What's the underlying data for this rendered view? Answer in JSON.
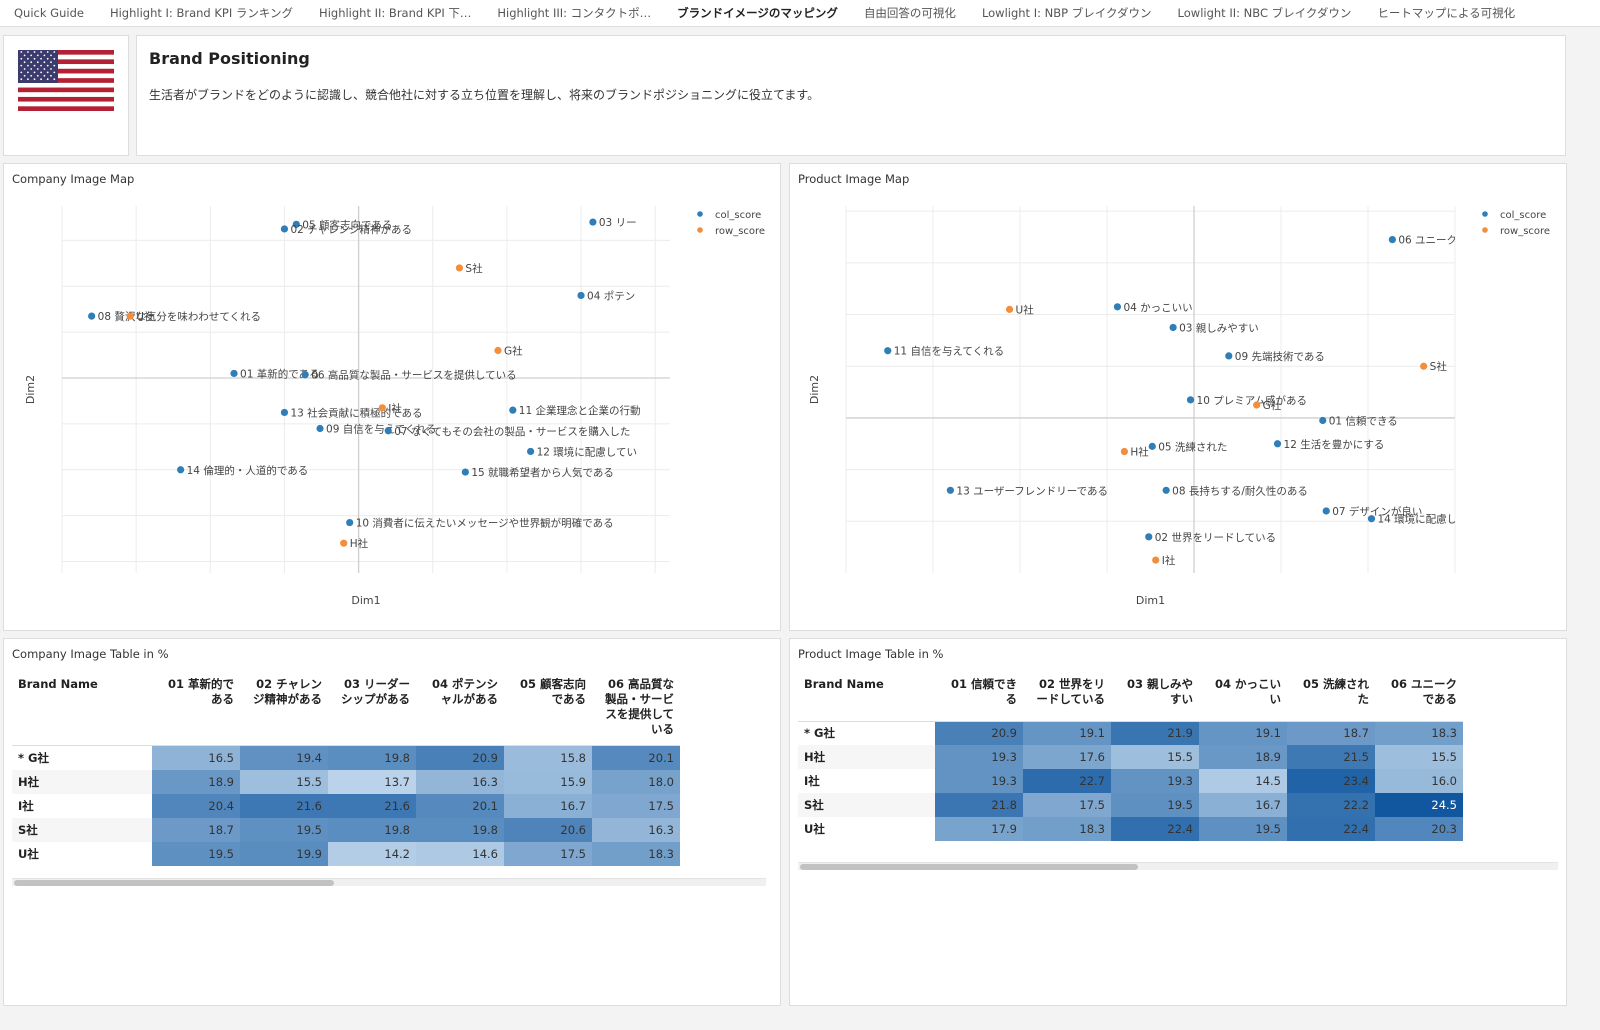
{
  "tabs": [
    {
      "label": "Quick Guide",
      "active": false
    },
    {
      "label": "Highlight I: Brand KPI ランキング",
      "active": false
    },
    {
      "label": "Highlight II: Brand KPI 下…",
      "active": false
    },
    {
      "label": "Highlight III: コンタクトポ…",
      "active": false
    },
    {
      "label": "ブランドイメージのマッピング",
      "active": true
    },
    {
      "label": "自由回答の可視化",
      "active": false
    },
    {
      "label": "Lowlight I: NBP ブレイクダウン",
      "active": false
    },
    {
      "label": "Lowlight II: NBC ブレイクダウン",
      "active": false
    },
    {
      "label": "ヒートマップによる可視化",
      "active": false
    }
  ],
  "header": {
    "flag_icon": "us-flag-icon",
    "title": "Brand Positioning",
    "description": "生活者がブランドをどのように認識し、競合他社に対する立ち位置を理解し、将来のブランドポジショニングに役立てます。"
  },
  "colors": {
    "col_score": "#2f7eb8",
    "row_score": "#f28e3c"
  },
  "company_map": {
    "title": "Company Image Map",
    "chart_data": {
      "type": "scatter",
      "xlabel": "Dim1",
      "ylabel": "Dim2",
      "xlim": [
        -1.0,
        1.05
      ],
      "ylim": [
        -0.85,
        0.75
      ],
      "grid": true,
      "legend": "top-right",
      "series": [
        {
          "name": "col_score",
          "points": [
            {
              "label": "05 顧客志向である",
              "x": -0.21,
              "y": 0.67
            },
            {
              "label": "02 チャレンジ精神がある",
              "x": -0.25,
              "y": 0.65
            },
            {
              "label": "03 リー",
              "x": 0.79,
              "y": 0.68
            },
            {
              "label": "04 ポテン",
              "x": 0.75,
              "y": 0.36
            },
            {
              "label": "08 贅沢な気分を味わわせてくれる",
              "x": -0.9,
              "y": 0.27
            },
            {
              "label": "01 革新的である",
              "x": -0.42,
              "y": 0.02
            },
            {
              "label": "06 高品質な製品・サービスを提供している",
              "x": -0.18,
              "y": 0.015
            },
            {
              "label": "13 社会貢献に積極的である",
              "x": -0.25,
              "y": -0.15
            },
            {
              "label": "11 企業理念と企業の行動",
              "x": 0.52,
              "y": -0.14
            },
            {
              "label": "09 自信を与えてくれる",
              "x": -0.13,
              "y": -0.22
            },
            {
              "label": "07 なくてもその会社の製品・サービスを購入した",
              "x": 0.1,
              "y": -0.23
            },
            {
              "label": "12 環境に配慮してい",
              "x": 0.58,
              "y": -0.32
            },
            {
              "label": "14 倫理的・人道的である",
              "x": -0.6,
              "y": -0.4
            },
            {
              "label": "15 就職希望者から人気である",
              "x": 0.36,
              "y": -0.41
            },
            {
              "label": "10 消費者に伝えたいメッセージや世界観が明確である",
              "x": -0.03,
              "y": -0.63
            }
          ]
        },
        {
          "name": "row_score",
          "points": [
            {
              "label": "S社",
              "x": 0.34,
              "y": 0.48
            },
            {
              "label": "U社",
              "x": -0.77,
              "y": 0.27
            },
            {
              "label": "G社",
              "x": 0.47,
              "y": 0.12
            },
            {
              "label": "I社",
              "x": 0.08,
              "y": -0.13
            },
            {
              "label": "H社",
              "x": -0.05,
              "y": -0.72
            }
          ]
        }
      ]
    }
  },
  "product_map": {
    "title": "Product Image Map",
    "chart_data": {
      "type": "scatter",
      "xlabel": "Dim1",
      "ylabel": "Dim2",
      "xlim": [
        -1.0,
        0.75
      ],
      "ylim": [
        -0.6,
        0.82
      ],
      "grid": true,
      "legend": "top-right",
      "series": [
        {
          "name": "col_score",
          "points": [
            {
              "label": "06 ユニークで",
              "x": 0.57,
              "y": 0.69
            },
            {
              "label": "04 かっこいい",
              "x": -0.22,
              "y": 0.43
            },
            {
              "label": "03 親しみやすい",
              "x": -0.06,
              "y": 0.35
            },
            {
              "label": "11 自信を与えてくれる",
              "x": -0.88,
              "y": 0.26
            },
            {
              "label": "09 先端技術である",
              "x": 0.1,
              "y": 0.24
            },
            {
              "label": "10 プレミアム感がある",
              "x": -0.01,
              "y": 0.07
            },
            {
              "label": "01 信頼できる",
              "x": 0.37,
              "y": -0.01
            },
            {
              "label": "05 洗練された",
              "x": -0.12,
              "y": -0.11
            },
            {
              "label": "12 生活を豊かにする",
              "x": 0.24,
              "y": -0.1
            },
            {
              "label": "13 ユーザーフレンドリーである",
              "x": -0.7,
              "y": -0.28
            },
            {
              "label": "08 長持ちする/耐久性のある",
              "x": -0.08,
              "y": -0.28
            },
            {
              "label": "07 デザインが良い",
              "x": 0.38,
              "y": -0.36
            },
            {
              "label": "14 環境に配慮して",
              "x": 0.51,
              "y": -0.39
            },
            {
              "label": "02 世界をリードしている",
              "x": -0.13,
              "y": -0.46
            }
          ]
        },
        {
          "name": "row_score",
          "points": [
            {
              "label": "U社",
              "x": -0.53,
              "y": 0.42
            },
            {
              "label": "S社",
              "x": 0.66,
              "y": 0.2
            },
            {
              "label": "G社",
              "x": 0.18,
              "y": 0.05
            },
            {
              "label": "H社",
              "x": -0.2,
              "y": -0.13
            },
            {
              "label": "I社",
              "x": -0.11,
              "y": -0.55
            }
          ]
        }
      ]
    }
  },
  "company_table": {
    "title": "Company Image Table in %",
    "brand_header": "Brand Name",
    "columns": [
      "01 革新的である",
      "02 チャレンジ精神がある",
      "03 リーダーシップがある",
      "04 ポテンシャルがある",
      "05 顧客志向である",
      "06 高品質な製品・サービスを提供している"
    ],
    "rows": [
      {
        "brand": "* G社",
        "values": [
          "16.5",
          "19.4",
          "19.8",
          "20.9",
          "15.8",
          "20.1"
        ]
      },
      {
        "brand": "H社",
        "values": [
          "18.9",
          "15.5",
          "13.7",
          "16.3",
          "15.9",
          "18.0"
        ]
      },
      {
        "brand": "I社",
        "values": [
          "20.4",
          "21.6",
          "21.6",
          "20.1",
          "16.7",
          "17.5"
        ]
      },
      {
        "brand": "S社",
        "values": [
          "18.7",
          "19.5",
          "19.8",
          "19.8",
          "20.6",
          "16.3"
        ]
      },
      {
        "brand": "U社",
        "values": [
          "19.5",
          "19.9",
          "14.2",
          "14.6",
          "17.5",
          "18.3"
        ]
      }
    ]
  },
  "product_table": {
    "title": "Product Image Table in %",
    "brand_header": "Brand Name",
    "columns": [
      "01 信頼できる",
      "02 世界をリードしている",
      "03 親しみやすい",
      "04 かっこいい",
      "05 洗練された",
      "06 ユニークである"
    ],
    "rows": [
      {
        "brand": "* G社",
        "values": [
          "20.9",
          "19.1",
          "21.9",
          "19.1",
          "18.7",
          "18.3"
        ]
      },
      {
        "brand": "H社",
        "values": [
          "19.3",
          "17.6",
          "15.5",
          "18.9",
          "21.5",
          "15.5"
        ]
      },
      {
        "brand": "I社",
        "values": [
          "19.3",
          "22.7",
          "19.3",
          "14.5",
          "23.4",
          "16.0"
        ]
      },
      {
        "brand": "S社",
        "values": [
          "21.8",
          "17.5",
          "19.5",
          "16.7",
          "22.2",
          "24.5"
        ]
      },
      {
        "brand": "U社",
        "values": [
          "17.9",
          "18.3",
          "22.4",
          "19.5",
          "22.4",
          "20.3"
        ]
      }
    ]
  }
}
